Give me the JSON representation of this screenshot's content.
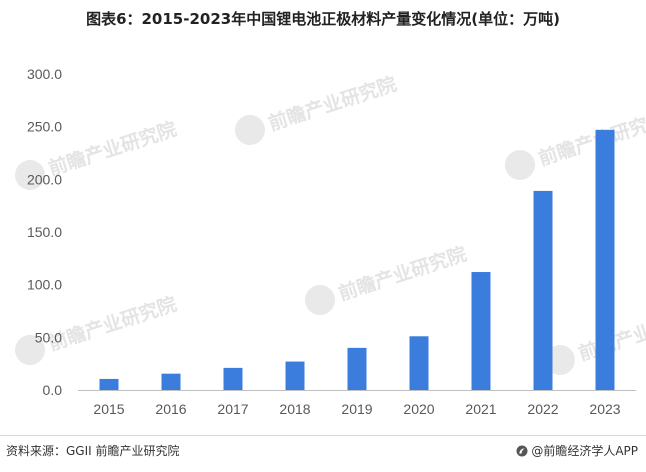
{
  "header": {
    "title": "图表6：2015-2023年中国锂电池正极材料产量变化情况(单位：万吨)"
  },
  "watermark": {
    "text": "前瞻产业研究院"
  },
  "footer": {
    "source": "资料来源：GGII 前瞻产业研究院",
    "credit": "@前瞻经济学人APP"
  },
  "colors": {
    "bar": "#3b7ddd",
    "axis": "#bfbfbf",
    "text": "#595959"
  },
  "chart_data": {
    "type": "bar",
    "title": "图表6：2015-2023年中国锂电池正极材料产量变化情况(单位：万吨)",
    "xlabel": "",
    "ylabel": "",
    "categories": [
      "2015",
      "2016",
      "2017",
      "2018",
      "2019",
      "2020",
      "2021",
      "2022",
      "2023"
    ],
    "values": [
      10.5,
      15.5,
      21.0,
      27.0,
      40.0,
      51.0,
      112.0,
      189.0,
      247.0
    ],
    "ylim": [
      0,
      300
    ],
    "yticks": [
      "0.0",
      "50.0",
      "100.0",
      "150.0",
      "200.0",
      "250.0",
      "300.0"
    ],
    "grid": false,
    "legend": "none"
  }
}
